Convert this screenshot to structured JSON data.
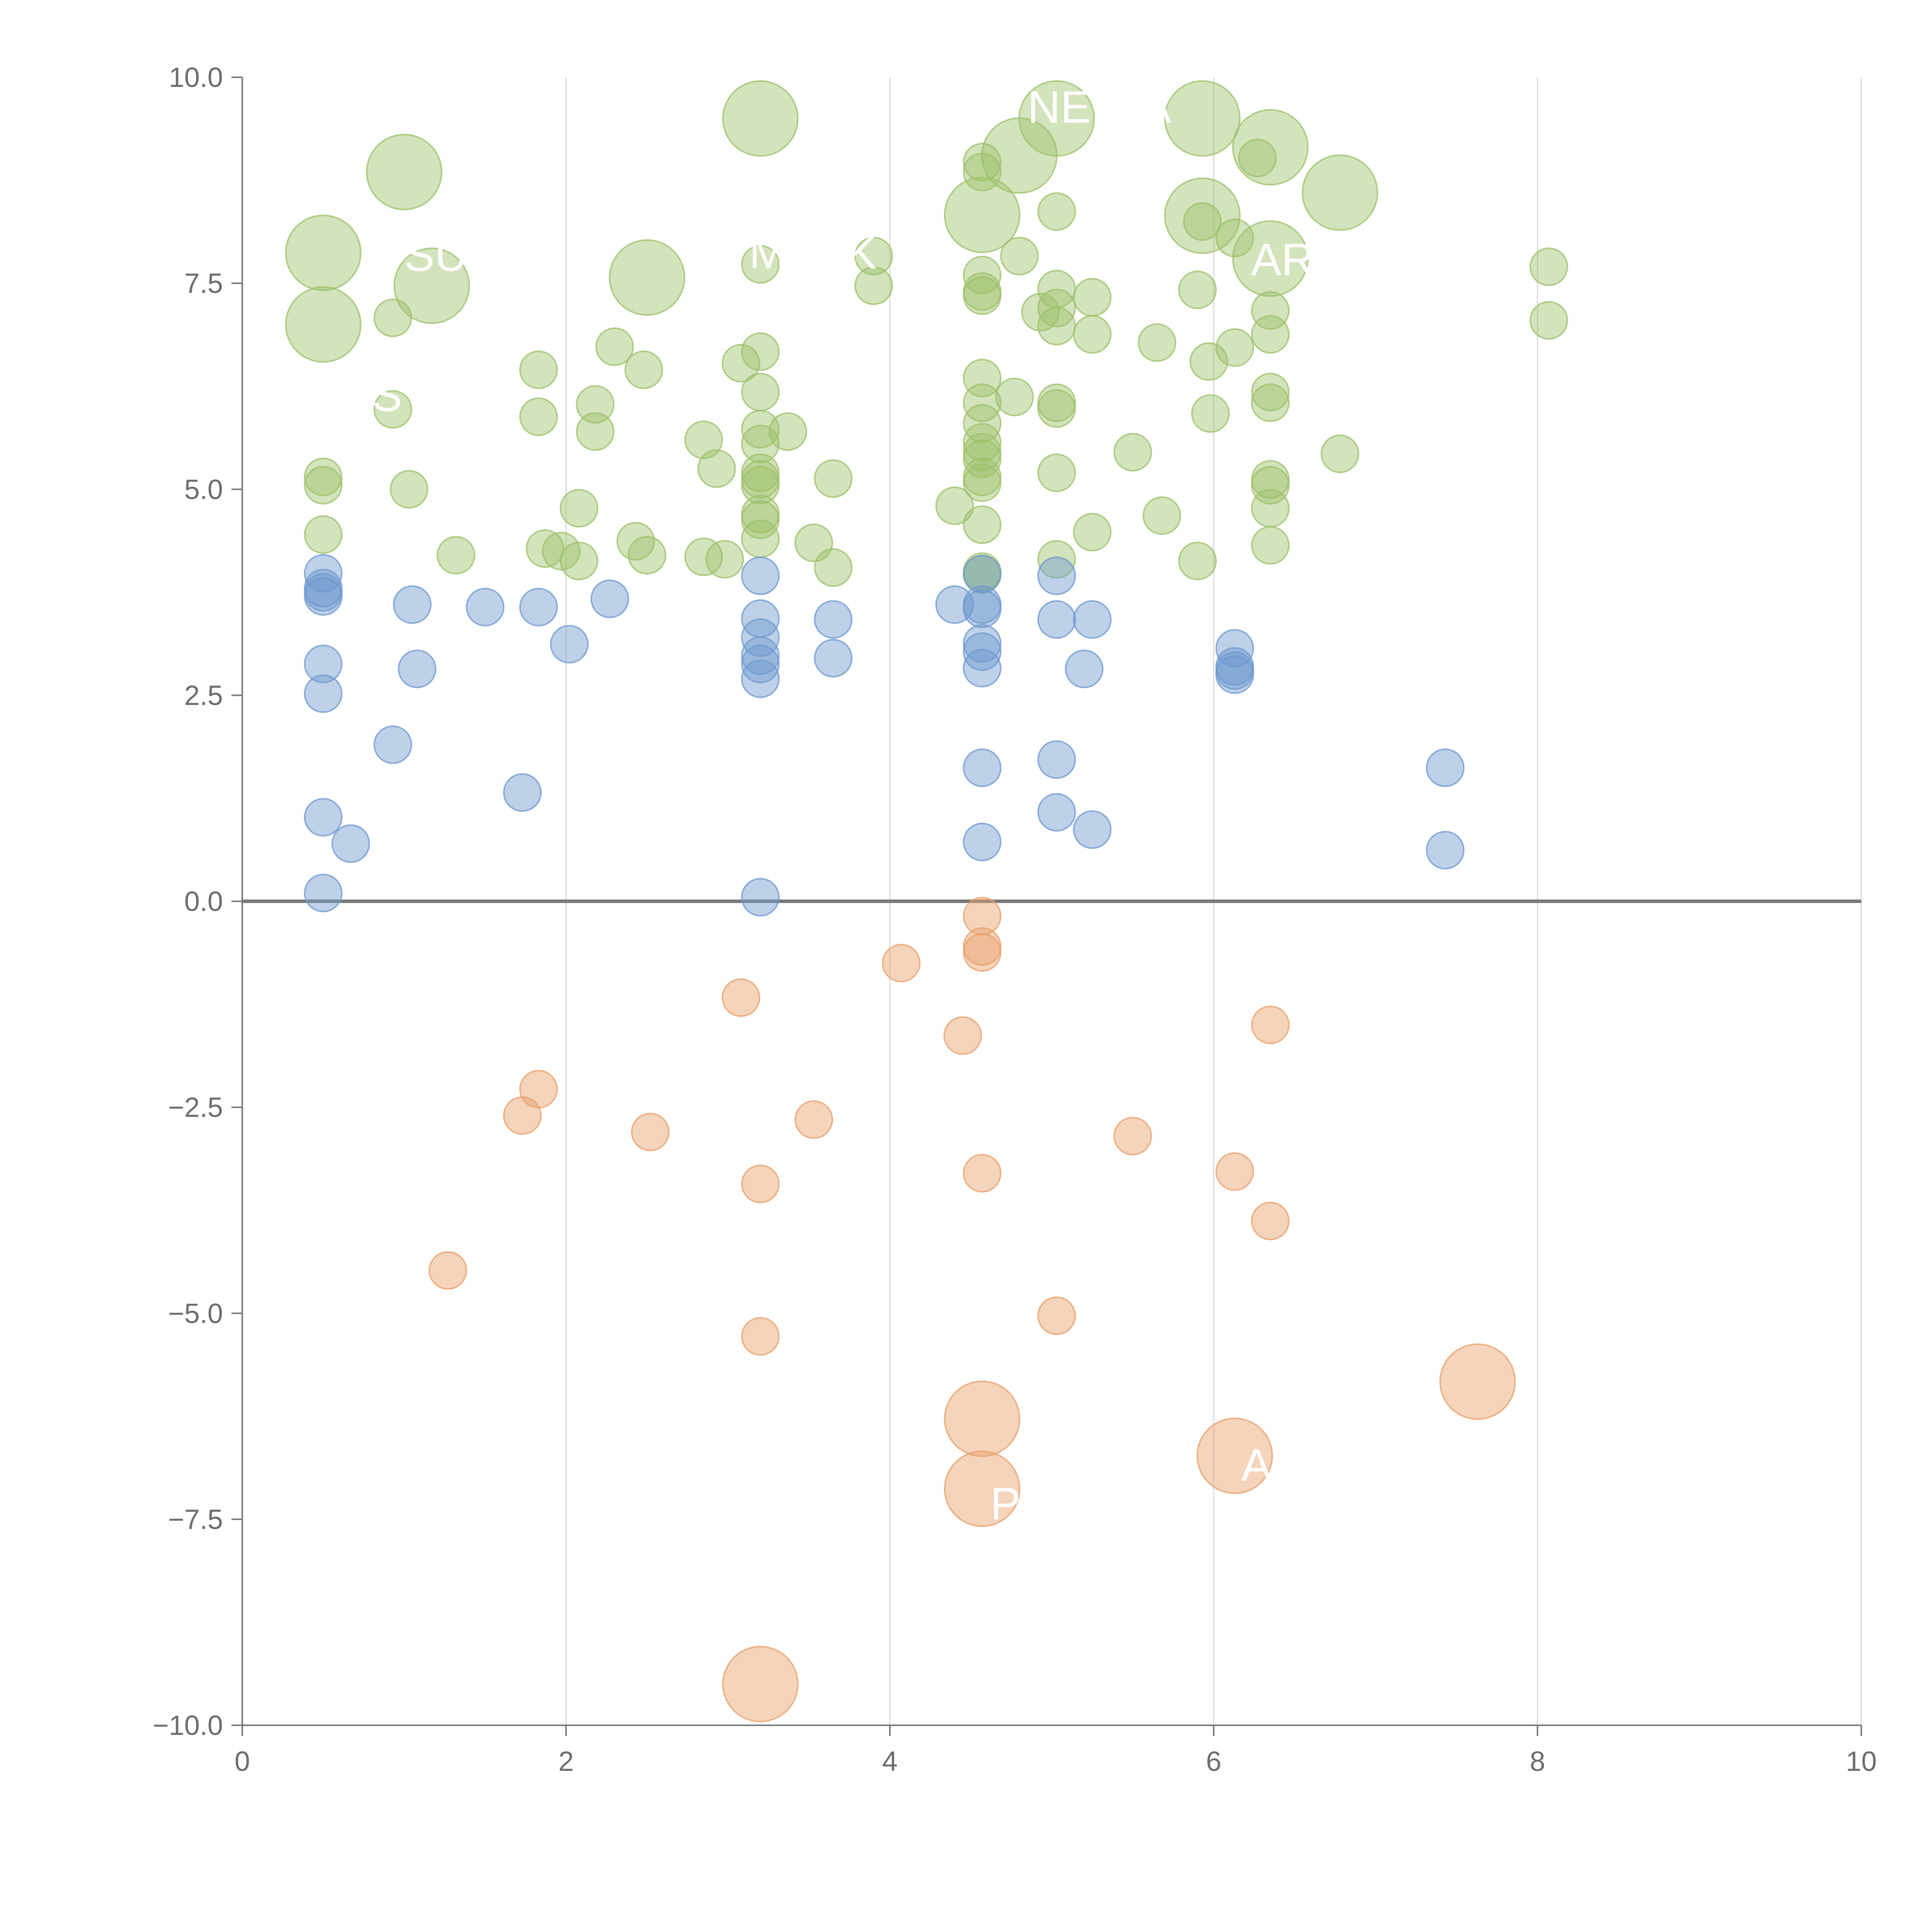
{
  "colors": {
    "positive_large": "#9dc06a",
    "positive_small": "#6f98cf",
    "negative": "#e8a06a",
    "axis": "#7a7a7a",
    "grid": "#d9d9d9",
    "label": "#ffffff"
  },
  "chart_data": {
    "type": "scatter",
    "title": "",
    "xlabel": "",
    "ylabel": "",
    "xlim": [
      0,
      10
    ],
    "ylim": [
      -10,
      10
    ],
    "grid": "vertical",
    "zero_line": true,
    "x_ticks": [
      0,
      2,
      4,
      6,
      8,
      10
    ],
    "x_tick_labels": [
      "0",
      "2",
      "4",
      "6",
      "8",
      "10"
    ],
    "y_ticks": [
      -10,
      -7.5,
      -5,
      -2.5,
      0,
      2.5,
      5,
      7.5,
      10
    ],
    "y_tick_labels": [
      "−10.0",
      "−7.5",
      "−5.0",
      "−2.5",
      "0.0",
      "2.5",
      "5.0",
      "7.5",
      "10.0"
    ],
    "series": [
      {
        "name": "green",
        "color": "#9dc06a",
        "points": [
          {
            "x": 0.5,
            "y": 7.87,
            "s": "l"
          },
          {
            "x": 0.5,
            "y": 7.0,
            "s": "l"
          },
          {
            "x": 1.0,
            "y": 8.85,
            "s": "l"
          },
          {
            "x": 1.17,
            "y": 7.47,
            "s": "l"
          },
          {
            "x": 2.5,
            "y": 7.57,
            "s": "l"
          },
          {
            "x": 3.2,
            "y": 9.5,
            "s": "l"
          },
          {
            "x": 4.57,
            "y": 8.33,
            "s": "l"
          },
          {
            "x": 4.8,
            "y": 9.05,
            "s": "l"
          },
          {
            "x": 5.03,
            "y": 9.5,
            "s": "l"
          },
          {
            "x": 5.93,
            "y": 9.5,
            "s": "l"
          },
          {
            "x": 5.93,
            "y": 8.32,
            "s": "l"
          },
          {
            "x": 6.35,
            "y": 9.15,
            "s": "l"
          },
          {
            "x": 6.35,
            "y": 7.8,
            "s": "l"
          },
          {
            "x": 6.78,
            "y": 8.6,
            "s": "l"
          },
          {
            "x": 0.5,
            "y": 5.15,
            "s": "s"
          },
          {
            "x": 0.5,
            "y": 5.05,
            "s": "s"
          },
          {
            "x": 0.5,
            "y": 4.45,
            "s": "s"
          },
          {
            "x": 0.93,
            "y": 7.08,
            "s": "s"
          },
          {
            "x": 0.93,
            "y": 5.97,
            "s": "s"
          },
          {
            "x": 1.03,
            "y": 5.0,
            "s": "s"
          },
          {
            "x": 1.32,
            "y": 4.2,
            "s": "s"
          },
          {
            "x": 1.83,
            "y": 6.45,
            "s": "s"
          },
          {
            "x": 1.83,
            "y": 5.88,
            "s": "s"
          },
          {
            "x": 1.87,
            "y": 4.28,
            "s": "s"
          },
          {
            "x": 1.97,
            "y": 4.25,
            "s": "s"
          },
          {
            "x": 2.08,
            "y": 4.77,
            "s": "s"
          },
          {
            "x": 2.08,
            "y": 4.13,
            "s": "s"
          },
          {
            "x": 2.18,
            "y": 6.03,
            "s": "s"
          },
          {
            "x": 2.18,
            "y": 5.7,
            "s": "s"
          },
          {
            "x": 2.3,
            "y": 6.73,
            "s": "s"
          },
          {
            "x": 2.43,
            "y": 4.37,
            "s": "s"
          },
          {
            "x": 2.48,
            "y": 6.45,
            "s": "s"
          },
          {
            "x": 2.5,
            "y": 4.2,
            "s": "s"
          },
          {
            "x": 2.85,
            "y": 5.6,
            "s": "s"
          },
          {
            "x": 2.85,
            "y": 4.18,
            "s": "s"
          },
          {
            "x": 2.93,
            "y": 5.25,
            "s": "s"
          },
          {
            "x": 2.98,
            "y": 4.15,
            "s": "s"
          },
          {
            "x": 3.08,
            "y": 6.53,
            "s": "s"
          },
          {
            "x": 3.2,
            "y": 7.73,
            "s": "s"
          },
          {
            "x": 3.2,
            "y": 6.67,
            "s": "s"
          },
          {
            "x": 3.2,
            "y": 6.18,
            "s": "s"
          },
          {
            "x": 3.2,
            "y": 5.73,
            "s": "s"
          },
          {
            "x": 3.2,
            "y": 5.55,
            "s": "s"
          },
          {
            "x": 3.2,
            "y": 5.2,
            "s": "s"
          },
          {
            "x": 3.2,
            "y": 5.12,
            "s": "s"
          },
          {
            "x": 3.2,
            "y": 5.05,
            "s": "s"
          },
          {
            "x": 3.2,
            "y": 4.7,
            "s": "s"
          },
          {
            "x": 3.2,
            "y": 4.63,
            "s": "s"
          },
          {
            "x": 3.2,
            "y": 4.4,
            "s": "s"
          },
          {
            "x": 3.37,
            "y": 5.7,
            "s": "s"
          },
          {
            "x": 3.53,
            "y": 4.35,
            "s": "s"
          },
          {
            "x": 3.65,
            "y": 5.13,
            "s": "s"
          },
          {
            "x": 3.65,
            "y": 4.05,
            "s": "s"
          },
          {
            "x": 3.9,
            "y": 7.83,
            "s": "s"
          },
          {
            "x": 3.9,
            "y": 7.47,
            "s": "s"
          },
          {
            "x": 4.4,
            "y": 4.8,
            "s": "s"
          },
          {
            "x": 4.57,
            "y": 8.97,
            "s": "s"
          },
          {
            "x": 4.57,
            "y": 8.85,
            "s": "s"
          },
          {
            "x": 4.57,
            "y": 7.6,
            "s": "s"
          },
          {
            "x": 4.57,
            "y": 7.4,
            "s": "s"
          },
          {
            "x": 4.57,
            "y": 7.35,
            "s": "s"
          },
          {
            "x": 4.57,
            "y": 6.35,
            "s": "s"
          },
          {
            "x": 4.57,
            "y": 6.05,
            "s": "s"
          },
          {
            "x": 4.57,
            "y": 5.8,
            "s": "s"
          },
          {
            "x": 4.57,
            "y": 5.57,
            "s": "s"
          },
          {
            "x": 4.57,
            "y": 5.45,
            "s": "s"
          },
          {
            "x": 4.57,
            "y": 5.37,
            "s": "s"
          },
          {
            "x": 4.57,
            "y": 5.15,
            "s": "s"
          },
          {
            "x": 4.57,
            "y": 5.08,
            "s": "s"
          },
          {
            "x": 4.57,
            "y": 4.57,
            "s": "s"
          },
          {
            "x": 4.57,
            "y": 3.97,
            "s": "s"
          },
          {
            "x": 4.57,
            "y": 4.0,
            "s": "s"
          },
          {
            "x": 4.77,
            "y": 6.12,
            "s": "s"
          },
          {
            "x": 4.8,
            "y": 7.83,
            "s": "s"
          },
          {
            "x": 4.93,
            "y": 7.15,
            "s": "s"
          },
          {
            "x": 5.03,
            "y": 8.37,
            "s": "s"
          },
          {
            "x": 5.03,
            "y": 7.43,
            "s": "s"
          },
          {
            "x": 5.03,
            "y": 7.2,
            "s": "s"
          },
          {
            "x": 5.03,
            "y": 6.98,
            "s": "s"
          },
          {
            "x": 5.03,
            "y": 6.05,
            "s": "s"
          },
          {
            "x": 5.03,
            "y": 5.98,
            "s": "s"
          },
          {
            "x": 5.03,
            "y": 5.2,
            "s": "s"
          },
          {
            "x": 5.03,
            "y": 4.15,
            "s": "s"
          },
          {
            "x": 5.25,
            "y": 7.33,
            "s": "s"
          },
          {
            "x": 5.25,
            "y": 6.88,
            "s": "s"
          },
          {
            "x": 5.25,
            "y": 4.48,
            "s": "s"
          },
          {
            "x": 5.5,
            "y": 5.45,
            "s": "s"
          },
          {
            "x": 5.65,
            "y": 6.78,
            "s": "s"
          },
          {
            "x": 5.68,
            "y": 4.68,
            "s": "s"
          },
          {
            "x": 5.9,
            "y": 7.42,
            "s": "s"
          },
          {
            "x": 5.9,
            "y": 4.13,
            "s": "s"
          },
          {
            "x": 5.93,
            "y": 8.25,
            "s": "s"
          },
          {
            "x": 5.97,
            "y": 6.55,
            "s": "s"
          },
          {
            "x": 5.98,
            "y": 5.92,
            "s": "s"
          },
          {
            "x": 6.13,
            "y": 8.05,
            "s": "s"
          },
          {
            "x": 6.13,
            "y": 6.72,
            "s": "s"
          },
          {
            "x": 6.27,
            "y": 9.02,
            "s": "s"
          },
          {
            "x": 6.35,
            "y": 7.17,
            "s": "s"
          },
          {
            "x": 6.35,
            "y": 6.88,
            "s": "s"
          },
          {
            "x": 6.35,
            "y": 6.18,
            "s": "s"
          },
          {
            "x": 6.35,
            "y": 6.05,
            "s": "s"
          },
          {
            "x": 6.35,
            "y": 5.12,
            "s": "s"
          },
          {
            "x": 6.35,
            "y": 5.05,
            "s": "s"
          },
          {
            "x": 6.35,
            "y": 4.77,
            "s": "s"
          },
          {
            "x": 6.35,
            "y": 4.32,
            "s": "s"
          },
          {
            "x": 6.78,
            "y": 5.43,
            "s": "s"
          },
          {
            "x": 8.07,
            "y": 7.7,
            "s": "s"
          },
          {
            "x": 8.07,
            "y": 7.05,
            "s": "s"
          }
        ]
      },
      {
        "name": "blue",
        "color": "#6f98cf",
        "points": [
          {
            "x": 0.5,
            "y": 3.98,
            "s": "s"
          },
          {
            "x": 0.5,
            "y": 3.8,
            "s": "s"
          },
          {
            "x": 0.5,
            "y": 3.75,
            "s": "s"
          },
          {
            "x": 0.5,
            "y": 3.7,
            "s": "s"
          },
          {
            "x": 0.5,
            "y": 2.88,
            "s": "s"
          },
          {
            "x": 0.5,
            "y": 2.52,
            "s": "s"
          },
          {
            "x": 0.5,
            "y": 1.02,
            "s": "s"
          },
          {
            "x": 0.5,
            "y": 0.1,
            "s": "s"
          },
          {
            "x": 0.67,
            "y": 0.7,
            "s": "s"
          },
          {
            "x": 0.93,
            "y": 1.9,
            "s": "s"
          },
          {
            "x": 1.05,
            "y": 3.6,
            "s": "s"
          },
          {
            "x": 1.08,
            "y": 2.82,
            "s": "s"
          },
          {
            "x": 1.5,
            "y": 3.57,
            "s": "s"
          },
          {
            "x": 1.73,
            "y": 1.32,
            "s": "s"
          },
          {
            "x": 1.83,
            "y": 3.57,
            "s": "s"
          },
          {
            "x": 2.02,
            "y": 3.12,
            "s": "s"
          },
          {
            "x": 2.27,
            "y": 3.67,
            "s": "s"
          },
          {
            "x": 3.2,
            "y": 3.95,
            "s": "s"
          },
          {
            "x": 3.2,
            "y": 3.43,
            "s": "s"
          },
          {
            "x": 3.2,
            "y": 3.2,
            "s": "s"
          },
          {
            "x": 3.2,
            "y": 2.98,
            "s": "s"
          },
          {
            "x": 3.2,
            "y": 2.88,
            "s": "s"
          },
          {
            "x": 3.2,
            "y": 2.7,
            "s": "s"
          },
          {
            "x": 3.2,
            "y": 0.05,
            "s": "s"
          },
          {
            "x": 3.65,
            "y": 3.42,
            "s": "s"
          },
          {
            "x": 3.65,
            "y": 2.95,
            "s": "s"
          },
          {
            "x": 4.4,
            "y": 3.6,
            "s": "s"
          },
          {
            "x": 4.57,
            "y": 3.97,
            "s": "s"
          },
          {
            "x": 4.57,
            "y": 3.6,
            "s": "s"
          },
          {
            "x": 4.57,
            "y": 3.55,
            "s": "s"
          },
          {
            "x": 4.57,
            "y": 3.13,
            "s": "s"
          },
          {
            "x": 4.57,
            "y": 3.03,
            "s": "s"
          },
          {
            "x": 4.57,
            "y": 2.83,
            "s": "s"
          },
          {
            "x": 4.57,
            "y": 1.62,
            "s": "s"
          },
          {
            "x": 4.57,
            "y": 0.72,
            "s": "s"
          },
          {
            "x": 5.03,
            "y": 3.95,
            "s": "s"
          },
          {
            "x": 5.03,
            "y": 3.42,
            "s": "s"
          },
          {
            "x": 5.03,
            "y": 1.72,
            "s": "s"
          },
          {
            "x": 5.03,
            "y": 1.08,
            "s": "s"
          },
          {
            "x": 5.2,
            "y": 2.82,
            "s": "s"
          },
          {
            "x": 5.25,
            "y": 3.42,
            "s": "s"
          },
          {
            "x": 5.25,
            "y": 0.87,
            "s": "s"
          },
          {
            "x": 6.13,
            "y": 3.07,
            "s": "s"
          },
          {
            "x": 6.13,
            "y": 2.85,
            "s": "s"
          },
          {
            "x": 6.13,
            "y": 2.8,
            "s": "s"
          },
          {
            "x": 6.13,
            "y": 2.75,
            "s": "s"
          },
          {
            "x": 7.43,
            "y": 1.62,
            "s": "s"
          },
          {
            "x": 7.43,
            "y": 0.62,
            "s": "s"
          }
        ]
      },
      {
        "name": "orange",
        "color": "#e8a06a",
        "points": [
          {
            "x": 1.27,
            "y": -4.48,
            "s": "s"
          },
          {
            "x": 1.73,
            "y": -2.6,
            "s": "s"
          },
          {
            "x": 1.83,
            "y": -2.28,
            "s": "s"
          },
          {
            "x": 2.52,
            "y": -2.8,
            "s": "s"
          },
          {
            "x": 3.08,
            "y": -1.17,
            "s": "s"
          },
          {
            "x": 3.2,
            "y": -3.43,
            "s": "s"
          },
          {
            "x": 3.2,
            "y": -5.28,
            "s": "s"
          },
          {
            "x": 3.53,
            "y": -2.65,
            "s": "s"
          },
          {
            "x": 4.07,
            "y": -0.75,
            "s": "s"
          },
          {
            "x": 4.45,
            "y": -1.63,
            "s": "s"
          },
          {
            "x": 4.57,
            "y": -0.18,
            "s": "s"
          },
          {
            "x": 4.57,
            "y": -0.55,
            "s": "s"
          },
          {
            "x": 4.57,
            "y": -0.62,
            "s": "s"
          },
          {
            "x": 4.57,
            "y": -3.3,
            "s": "s"
          },
          {
            "x": 5.03,
            "y": -5.03,
            "s": "s"
          },
          {
            "x": 5.5,
            "y": -2.85,
            "s": "s"
          },
          {
            "x": 6.13,
            "y": -3.28,
            "s": "s"
          },
          {
            "x": 6.35,
            "y": -1.5,
            "s": "s"
          },
          {
            "x": 6.35,
            "y": -3.88,
            "s": "s"
          },
          {
            "x": 3.2,
            "y": -9.5,
            "s": "l"
          },
          {
            "x": 4.57,
            "y": -6.28,
            "s": "l"
          },
          {
            "x": 4.57,
            "y": -7.13,
            "s": "l"
          },
          {
            "x": 6.13,
            "y": -6.73,
            "s": "l"
          },
          {
            "x": 7.63,
            "y": -5.83,
            "s": "l"
          }
        ]
      }
    ],
    "annotations": [
      {
        "text": "NE",
        "x": 4.85,
        "y": 9.45
      },
      {
        "text": "A",
        "x": 5.55,
        "y": 9.45
      },
      {
        "text": "SU",
        "x": 1.0,
        "y": 7.65
      },
      {
        "text": "M",
        "x": 3.13,
        "y": 7.68
      },
      {
        "text": "K",
        "x": 3.73,
        "y": 7.68
      },
      {
        "text": "AR",
        "x": 6.23,
        "y": 7.6
      },
      {
        "text": "S",
        "x": 0.8,
        "y": 5.95
      },
      {
        "text": "P",
        "x": 4.62,
        "y": -7.5
      },
      {
        "text": "A",
        "x": 6.17,
        "y": -7.03
      }
    ]
  }
}
